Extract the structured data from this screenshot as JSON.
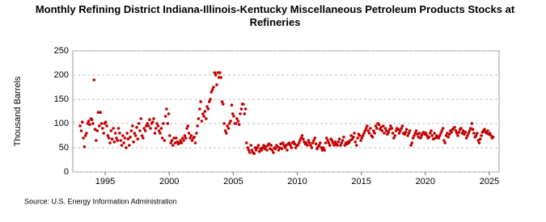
{
  "chart_data": {
    "type": "scatter",
    "title": "Monthly Refining District Indiana-Illinois-Kentucky Miscellaneous Petroleum Products Stocks at Refineries",
    "y_label": "Thousand Barrels",
    "source": "Source: U.S. Energy Information Administration",
    "color": "#c00000",
    "xlim": [
      1992.47,
      2025.76
    ],
    "ylim": [
      0,
      250
    ],
    "xticks": [
      1995,
      2000,
      2005,
      2010,
      2015,
      2020,
      2025
    ],
    "yticks": [
      0,
      50,
      100,
      150,
      200,
      250
    ],
    "grid": true,
    "x": [
      1993.04,
      1993.13,
      1993.21,
      1993.29,
      1993.38,
      1993.46,
      1993.54,
      1993.63,
      1993.71,
      1993.79,
      1993.88,
      1993.96,
      1994.04,
      1994.13,
      1994.21,
      1994.29,
      1994.38,
      1994.46,
      1994.54,
      1994.63,
      1994.71,
      1994.79,
      1994.88,
      1994.96,
      1995.04,
      1995.13,
      1995.21,
      1995.29,
      1995.38,
      1995.46,
      1995.54,
      1995.63,
      1995.71,
      1995.79,
      1995.88,
      1995.96,
      1996.04,
      1996.13,
      1996.21,
      1996.29,
      1996.38,
      1996.46,
      1996.54,
      1996.63,
      1996.71,
      1996.79,
      1996.88,
      1996.96,
      1997.04,
      1997.13,
      1997.21,
      1997.29,
      1997.38,
      1997.46,
      1997.54,
      1997.63,
      1997.71,
      1997.79,
      1997.88,
      1997.96,
      1998.04,
      1998.13,
      1998.21,
      1998.29,
      1998.38,
      1998.46,
      1998.54,
      1998.63,
      1998.71,
      1998.79,
      1998.88,
      1998.96,
      1999.04,
      1999.13,
      1999.21,
      1999.29,
      1999.38,
      1999.46,
      1999.54,
      1999.63,
      1999.71,
      1999.79,
      1999.88,
      1999.96,
      2000.04,
      2000.13,
      2000.21,
      2000.29,
      2000.38,
      2000.46,
      2000.54,
      2000.63,
      2000.71,
      2000.79,
      2000.88,
      2000.96,
      2001.04,
      2001.13,
      2001.21,
      2001.29,
      2001.38,
      2001.46,
      2001.54,
      2001.63,
      2001.71,
      2001.79,
      2001.88,
      2001.96,
      2002.04,
      2002.13,
      2002.21,
      2002.29,
      2002.38,
      2002.46,
      2002.54,
      2002.63,
      2002.71,
      2002.79,
      2002.88,
      2002.96,
      2003.04,
      2003.13,
      2003.21,
      2003.29,
      2003.38,
      2003.46,
      2003.54,
      2003.63,
      2003.71,
      2003.79,
      2003.88,
      2003.96,
      2004.04,
      2004.13,
      2004.21,
      2004.29,
      2004.38,
      2004.46,
      2004.54,
      2004.63,
      2004.71,
      2004.79,
      2004.88,
      2004.96,
      2005.04,
      2005.13,
      2005.21,
      2005.29,
      2005.38,
      2005.46,
      2005.54,
      2005.63,
      2005.71,
      2005.79,
      2005.88,
      2005.96,
      2006.04,
      2006.13,
      2006.21,
      2006.29,
      2006.38,
      2006.46,
      2006.54,
      2006.63,
      2006.71,
      2006.79,
      2006.88,
      2006.96,
      2007.04,
      2007.13,
      2007.21,
      2007.29,
      2007.38,
      2007.46,
      2007.54,
      2007.63,
      2007.71,
      2007.79,
      2007.88,
      2007.96,
      2008.04,
      2008.13,
      2008.21,
      2008.29,
      2008.38,
      2008.46,
      2008.54,
      2008.63,
      2008.71,
      2008.79,
      2008.88,
      2008.96,
      2009.04,
      2009.13,
      2009.21,
      2009.29,
      2009.38,
      2009.46,
      2009.54,
      2009.63,
      2009.71,
      2009.79,
      2009.88,
      2009.96,
      2010.04,
      2010.13,
      2010.21,
      2010.29,
      2010.38,
      2010.46,
      2010.54,
      2010.63,
      2010.71,
      2010.79,
      2010.88,
      2010.96,
      2011.04,
      2011.13,
      2011.21,
      2011.29,
      2011.38,
      2011.46,
      2011.54,
      2011.63,
      2011.71,
      2011.79,
      2011.88,
      2011.96,
      2012.04,
      2012.13,
      2012.21,
      2012.29,
      2012.38,
      2012.46,
      2012.54,
      2012.63,
      2012.71,
      2012.79,
      2012.88,
      2012.96,
      2013.04,
      2013.13,
      2013.21,
      2013.29,
      2013.38,
      2013.46,
      2013.54,
      2013.63,
      2013.71,
      2013.79,
      2013.88,
      2013.96,
      2014.04,
      2014.13,
      2014.21,
      2014.29,
      2014.38,
      2014.46,
      2014.54,
      2014.63,
      2014.71,
      2014.79,
      2014.88,
      2014.96,
      2015.04,
      2015.13,
      2015.21,
      2015.29,
      2015.38,
      2015.46,
      2015.54,
      2015.63,
      2015.71,
      2015.79,
      2015.88,
      2015.96,
      2016.04,
      2016.13,
      2016.21,
      2016.29,
      2016.38,
      2016.46,
      2016.54,
      2016.63,
      2016.71,
      2016.79,
      2016.88,
      2016.96,
      2017.04,
      2017.13,
      2017.21,
      2017.29,
      2017.38,
      2017.46,
      2017.54,
      2017.63,
      2017.71,
      2017.79,
      2017.88,
      2017.96,
      2018.04,
      2018.13,
      2018.21,
      2018.29,
      2018.38,
      2018.46,
      2018.54,
      2018.63,
      2018.71,
      2018.79,
      2018.88,
      2018.96,
      2019.04,
      2019.13,
      2019.21,
      2019.29,
      2019.38,
      2019.46,
      2019.54,
      2019.63,
      2019.71,
      2019.79,
      2019.88,
      2019.96,
      2020.04,
      2020.13,
      2020.21,
      2020.29,
      2020.38,
      2020.46,
      2020.54,
      2020.63,
      2020.71,
      2020.79,
      2020.88,
      2020.96,
      2021.04,
      2021.13,
      2021.21,
      2021.29,
      2021.38,
      2021.46,
      2021.54,
      2021.63,
      2021.71,
      2021.79,
      2021.88,
      2021.96,
      2022.04,
      2022.13,
      2022.21,
      2022.29,
      2022.38,
      2022.46,
      2022.54,
      2022.63,
      2022.71,
      2022.79,
      2022.88,
      2022.96,
      2023.04,
      2023.13,
      2023.21,
      2023.29,
      2023.38,
      2023.46,
      2023.54,
      2023.63,
      2023.71,
      2023.79,
      2023.88,
      2023.96,
      2024.04,
      2024.13,
      2024.21,
      2024.29,
      2024.38,
      2024.46,
      2024.54,
      2024.63,
      2024.71,
      2024.79,
      2024.88,
      2024.96,
      2025.04,
      2025.13,
      2025.21,
      2025.29
    ],
    "values": [
      95,
      85,
      103,
      70,
      52,
      75,
      80,
      100,
      105,
      98,
      110,
      108,
      100,
      190,
      88,
      65,
      85,
      123,
      95,
      123,
      100,
      90,
      80,
      100,
      103,
      95,
      75,
      70,
      60,
      85,
      68,
      90,
      62,
      80,
      70,
      65,
      90,
      80,
      65,
      55,
      75,
      60,
      70,
      50,
      80,
      68,
      55,
      72,
      85,
      95,
      62,
      80,
      75,
      92,
      68,
      100,
      85,
      110,
      75,
      70,
      90,
      85,
      95,
      100,
      95,
      108,
      90,
      100,
      103,
      110,
      80,
      90,
      100,
      95,
      85,
      80,
      90,
      70,
      100,
      65,
      115,
      130,
      100,
      120,
      75,
      60,
      65,
      55,
      70,
      60,
      70,
      62,
      58,
      60,
      65,
      60,
      70,
      65,
      75,
      70,
      90,
      95,
      80,
      70,
      75,
      65,
      70,
      72,
      60,
      80,
      95,
      110,
      130,
      145,
      105,
      120,
      115,
      125,
      110,
      135,
      130,
      145,
      150,
      165,
      170,
      175,
      205,
      200,
      180,
      205,
      195,
      205,
      195,
      145,
      140,
      100,
      85,
      80,
      95,
      90,
      100,
      105,
      138,
      120,
      115,
      100,
      100,
      110,
      105,
      98,
      120,
      130,
      140,
      140,
      120,
      130,
      60,
      50,
      45,
      40,
      55,
      45,
      40,
      38,
      50,
      45,
      50,
      55,
      42,
      48,
      45,
      50,
      55,
      48,
      52,
      45,
      55,
      58,
      48,
      55,
      45,
      40,
      50,
      48,
      55,
      52,
      45,
      50,
      58,
      48,
      60,
      55,
      50,
      55,
      45,
      58,
      60,
      55,
      50,
      60,
      62,
      58,
      50,
      55,
      55,
      60,
      65,
      70,
      75,
      68,
      62,
      58,
      60,
      55,
      65,
      60,
      55,
      50,
      60,
      65,
      70,
      58,
      48,
      52,
      55,
      60,
      50,
      45,
      50,
      45,
      60,
      70,
      65,
      60,
      55,
      68,
      65,
      60,
      55,
      62,
      58,
      55,
      62,
      68,
      55,
      60,
      65,
      72,
      55,
      60,
      58,
      62,
      60,
      65,
      75,
      68,
      72,
      80,
      62,
      55,
      70,
      78,
      75,
      65,
      70,
      75,
      80,
      85,
      90,
      95,
      85,
      80,
      90,
      75,
      72,
      85,
      80,
      95,
      90,
      100,
      98,
      88,
      92,
      85,
      95,
      80,
      90,
      85,
      78,
      82,
      88,
      95,
      90,
      80,
      70,
      75,
      85,
      90,
      88,
      80,
      85,
      90,
      95,
      80,
      78,
      82,
      88,
      75,
      80,
      85,
      55,
      60,
      70,
      75,
      80,
      85,
      78,
      72,
      80,
      70,
      75,
      80,
      82,
      78,
      80,
      75,
      70,
      72,
      80,
      85,
      75,
      68,
      80,
      70,
      75,
      72,
      70,
      75,
      80,
      85,
      90,
      65,
      60,
      75,
      80,
      72,
      78,
      85,
      82,
      88,
      90,
      92,
      85,
      80,
      75,
      82,
      88,
      90,
      80,
      85,
      78,
      82,
      70,
      75,
      80,
      85,
      90,
      100,
      88,
      80,
      72,
      75,
      80,
      65,
      60,
      68,
      75,
      82,
      85,
      88,
      82,
      80,
      85,
      78,
      80,
      75,
      70,
      72
    ]
  }
}
